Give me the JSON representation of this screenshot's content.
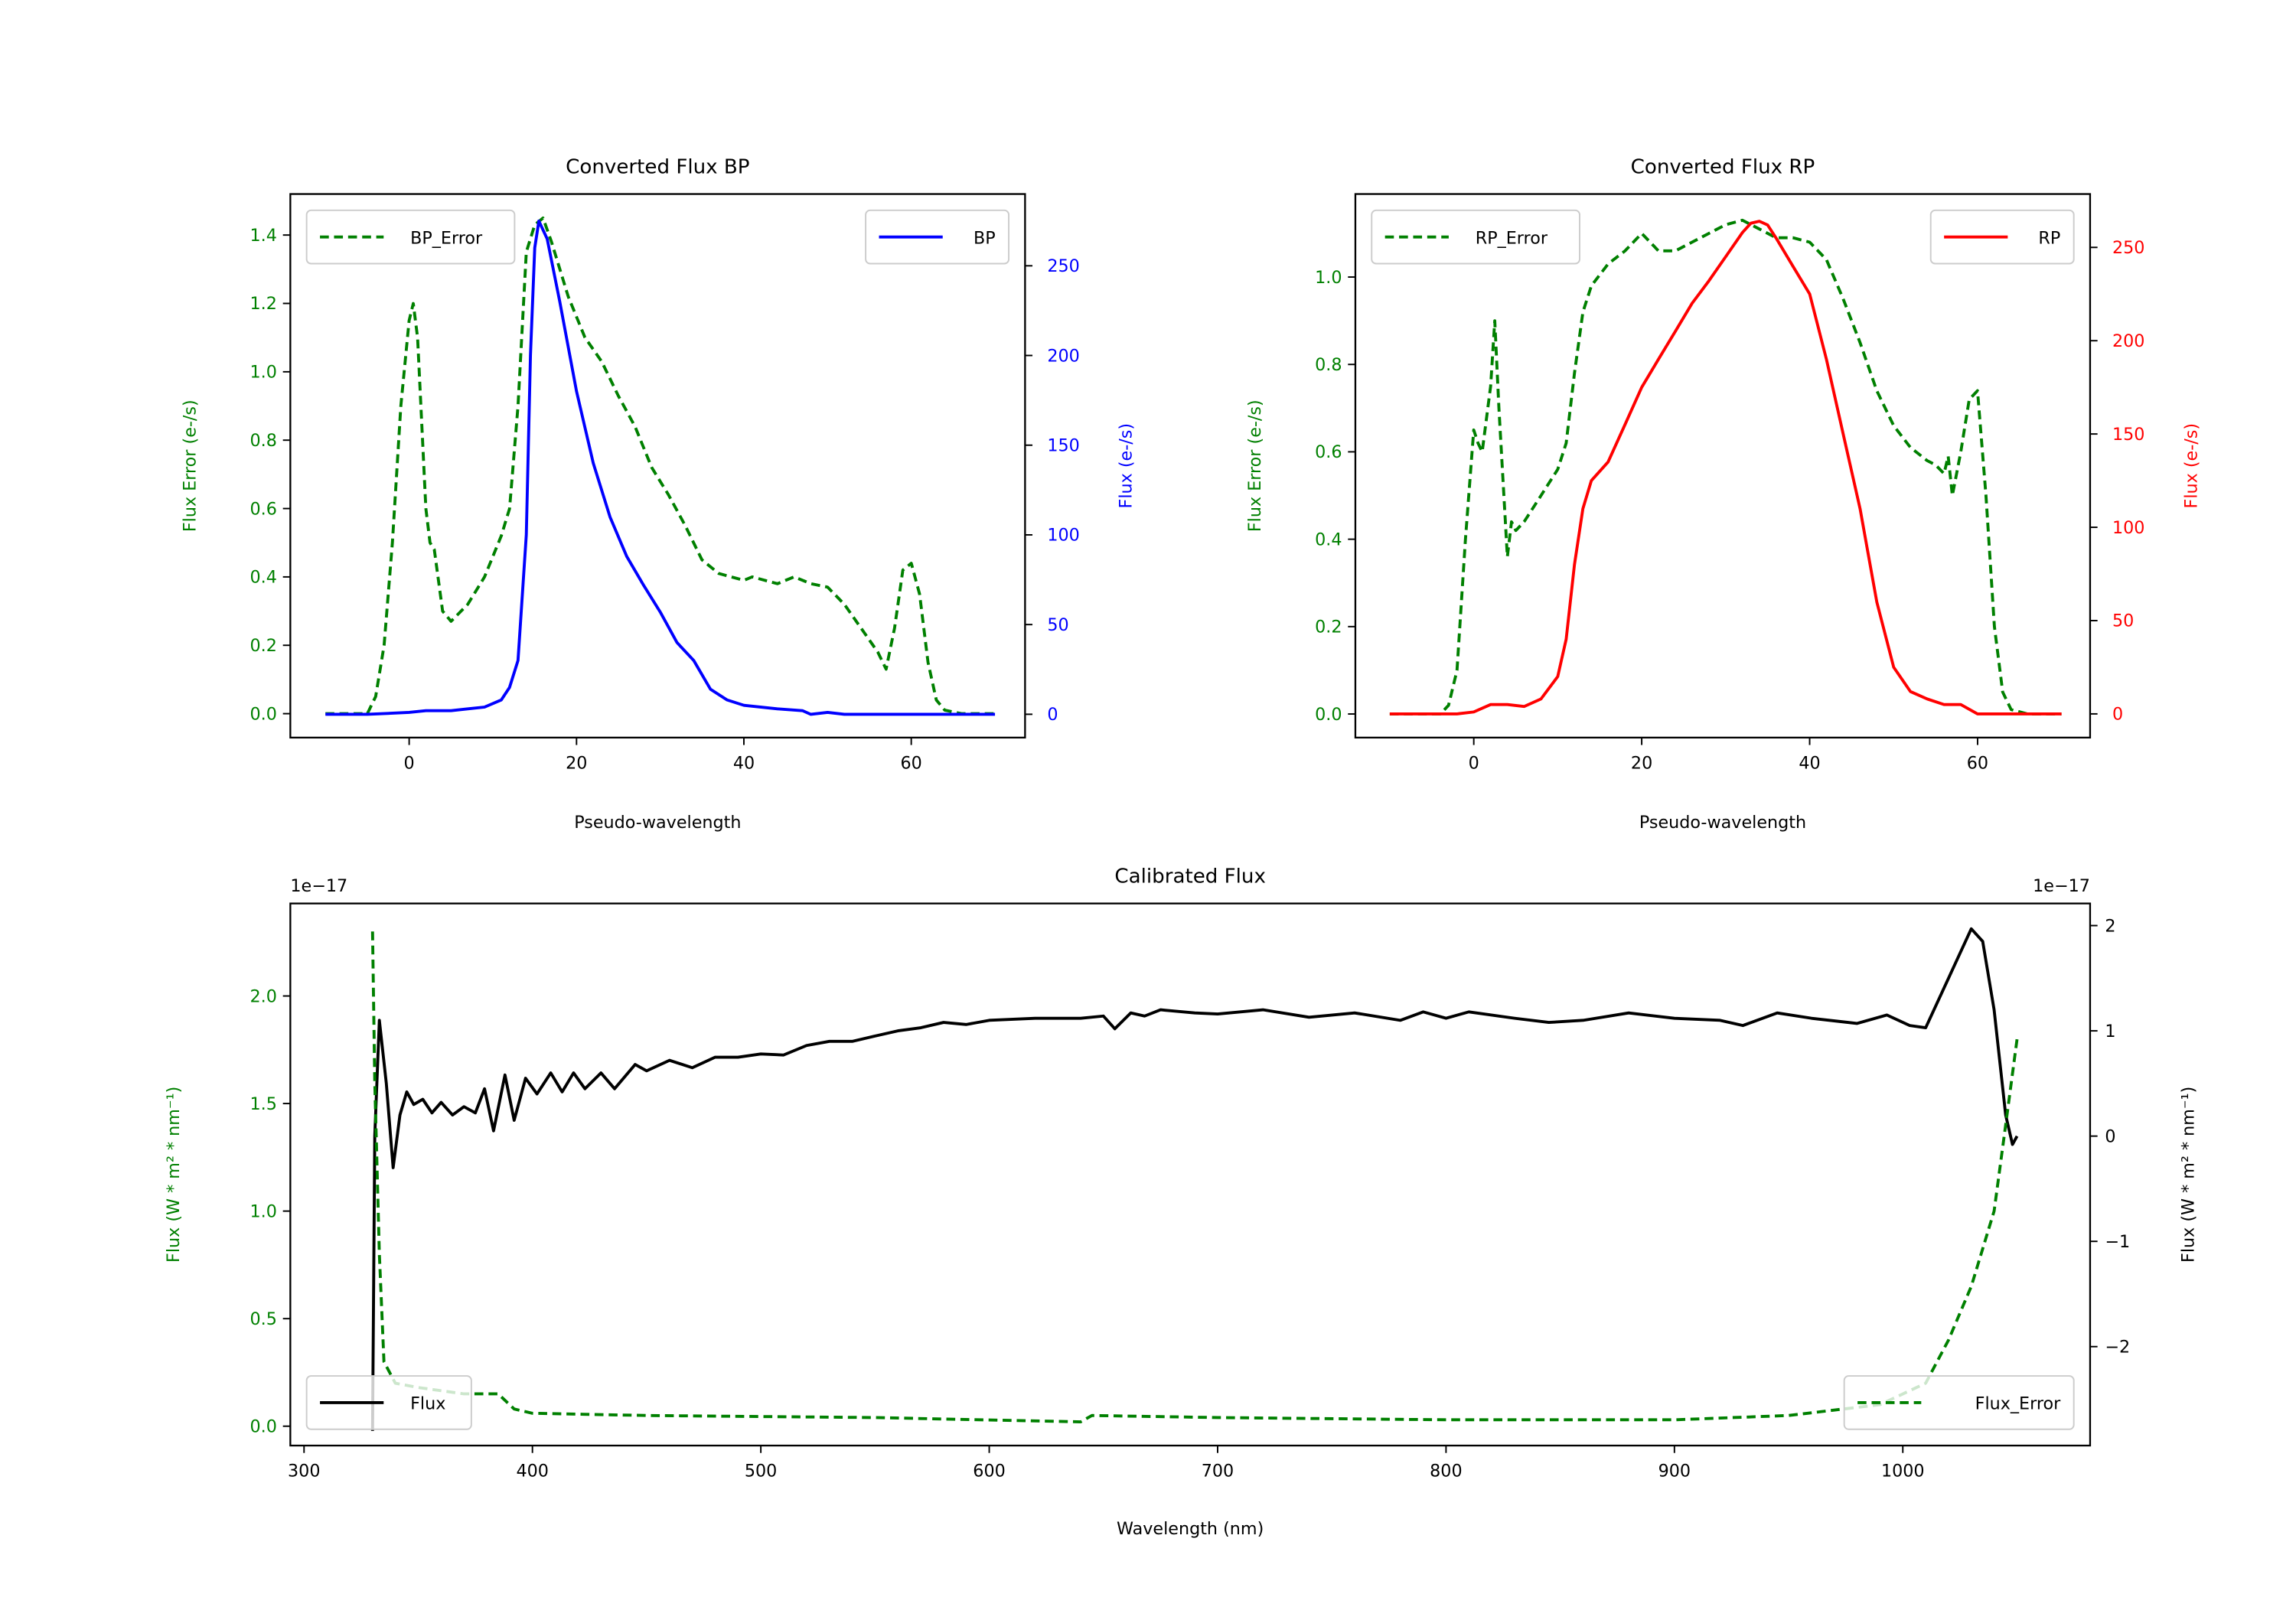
{
  "colors": {
    "error": "#008000",
    "bp": "#0000ff",
    "rp": "#ff0000",
    "flux": "#000000"
  },
  "chart_data": [
    {
      "type": "line",
      "title": "Converted Flux BP",
      "xlabel": "Pseudo-wavelength",
      "ylabel_left": "Flux Error (e-/s)",
      "ylabel_right": "Flux (e-/s)",
      "xlim": [
        -14.2,
        73.6
      ],
      "ylim_left": [
        -0.07,
        1.52
      ],
      "ylim_right": [
        -13,
        290
      ],
      "xticks": [
        "0",
        "20",
        "40",
        "60"
      ],
      "xtick_values": [
        0,
        20,
        40,
        60
      ],
      "yticks_left": [
        "0.0",
        "0.2",
        "0.4",
        "0.6",
        "0.8",
        "1.0",
        "1.2",
        "1.4"
      ],
      "ytick_left_values": [
        0,
        0.2,
        0.4,
        0.6,
        0.8,
        1.0,
        1.2,
        1.4
      ],
      "yticks_right": [
        "0",
        "50",
        "100",
        "150",
        "200",
        "250"
      ],
      "ytick_right_values": [
        0,
        50,
        100,
        150,
        200,
        250
      ],
      "series": [
        {
          "name": "BP_Error",
          "axis": "left",
          "style": "dashed",
          "color": "#008000",
          "legend": "upper-left",
          "x": [
            -10,
            -5,
            -4,
            -3,
            -2,
            -1,
            0,
            0.5,
            1,
            2,
            2.5,
            3,
            4,
            5,
            7,
            9,
            11,
            12,
            13,
            14,
            15,
            16,
            17,
            19,
            21,
            23,
            25,
            27,
            29,
            31,
            33,
            35,
            37,
            40,
            41,
            44,
            46,
            48,
            50,
            52,
            54,
            56,
            57,
            58,
            59,
            60,
            61,
            62,
            63,
            64,
            66,
            70
          ],
          "y": [
            0,
            0,
            0.05,
            0.2,
            0.5,
            0.9,
            1.15,
            1.2,
            1.1,
            0.6,
            0.5,
            0.48,
            0.3,
            0.27,
            0.32,
            0.4,
            0.52,
            0.6,
            0.9,
            1.35,
            1.43,
            1.45,
            1.38,
            1.22,
            1.1,
            1.03,
            0.93,
            0.84,
            0.72,
            0.64,
            0.55,
            0.45,
            0.41,
            0.39,
            0.4,
            0.38,
            0.4,
            0.38,
            0.37,
            0.32,
            0.25,
            0.18,
            0.13,
            0.25,
            0.42,
            0.44,
            0.35,
            0.15,
            0.04,
            0.01,
            0,
            0
          ]
        },
        {
          "name": "BP",
          "axis": "right",
          "style": "solid",
          "color": "#0000ff",
          "legend": "upper-right",
          "x": [
            -10,
            -5,
            0,
            2,
            5,
            7,
            9,
            11,
            12,
            13,
            14,
            14.5,
            15,
            15.5,
            16.5,
            18,
            20,
            22,
            24,
            26,
            28,
            30,
            32,
            34,
            36,
            38,
            40,
            44,
            47,
            48,
            50,
            52,
            56,
            60,
            64,
            70
          ],
          "y": [
            0,
            0,
            1,
            2,
            2,
            3,
            4,
            8,
            15,
            30,
            100,
            200,
            260,
            275,
            265,
            230,
            180,
            140,
            110,
            88,
            72,
            57,
            40,
            30,
            14,
            8,
            5,
            3,
            2,
            0,
            1,
            0,
            0,
            0,
            0,
            0
          ]
        }
      ]
    },
    {
      "type": "line",
      "title": "Converted Flux RP",
      "xlabel": "Pseudo-wavelength",
      "ylabel_left": "Flux Error (e-/s)",
      "ylabel_right": "Flux (e-/s)",
      "xlim": [
        -14.1,
        73.4
      ],
      "ylim_left": [
        -0.054,
        1.19
      ],
      "ylim_right": [
        -12.7,
        278.6
      ],
      "xticks": [
        "0",
        "20",
        "40",
        "60"
      ],
      "xtick_values": [
        0,
        20,
        40,
        60
      ],
      "yticks_left": [
        "0.0",
        "0.2",
        "0.4",
        "0.6",
        "0.8",
        "1.0"
      ],
      "ytick_left_values": [
        0,
        0.2,
        0.4,
        0.6,
        0.8,
        1.0
      ],
      "yticks_right": [
        "0",
        "50",
        "100",
        "150",
        "200",
        "250"
      ],
      "ytick_right_values": [
        0,
        50,
        100,
        150,
        200,
        250
      ],
      "series": [
        {
          "name": "RP_Error",
          "axis": "left",
          "style": "dashed",
          "color": "#008000",
          "legend": "upper-left",
          "x": [
            -10,
            -4,
            -3,
            -2,
            -1,
            0,
            0.5,
            1,
            2,
            2.5,
            3,
            4,
            4.5,
            5,
            6,
            8,
            10,
            11,
            12,
            13,
            14,
            16,
            18,
            20,
            21,
            22,
            24,
            26,
            28,
            30,
            32,
            34,
            36,
            38,
            40,
            42,
            44,
            46,
            48,
            50,
            52,
            54,
            55,
            56,
            56.5,
            57,
            58,
            59,
            60,
            61,
            62,
            63,
            64,
            66,
            70
          ],
          "y": [
            0,
            0,
            0.02,
            0.1,
            0.4,
            0.65,
            0.62,
            0.6,
            0.75,
            0.9,
            0.7,
            0.36,
            0.44,
            0.42,
            0.44,
            0.5,
            0.56,
            0.62,
            0.78,
            0.92,
            0.98,
            1.03,
            1.06,
            1.1,
            1.08,
            1.06,
            1.06,
            1.08,
            1.1,
            1.12,
            1.13,
            1.11,
            1.09,
            1.09,
            1.08,
            1.04,
            0.95,
            0.85,
            0.74,
            0.66,
            0.61,
            0.58,
            0.57,
            0.55,
            0.59,
            0.5,
            0.6,
            0.72,
            0.74,
            0.5,
            0.2,
            0.05,
            0.01,
            0,
            0
          ]
        },
        {
          "name": "RP",
          "axis": "right",
          "style": "solid",
          "color": "#ff0000",
          "legend": "upper-right",
          "x": [
            -10,
            -2,
            0,
            2,
            4,
            6,
            8,
            10,
            11,
            12,
            13,
            14,
            16,
            18,
            20,
            22,
            24,
            26,
            28,
            30,
            32,
            33,
            34,
            35,
            36,
            38,
            40,
            42,
            44,
            46,
            48,
            50,
            52,
            54,
            56,
            58,
            60,
            70
          ],
          "y": [
            0,
            0,
            1,
            5,
            5,
            4,
            8,
            20,
            40,
            80,
            110,
            125,
            135,
            155,
            175,
            190,
            205,
            220,
            232,
            245,
            258,
            263,
            264,
            262,
            255,
            240,
            225,
            190,
            150,
            110,
            60,
            25,
            12,
            8,
            5,
            5,
            0,
            0
          ]
        }
      ]
    },
    {
      "type": "line",
      "title": "Calibrated Flux",
      "xlabel": "Wavelength (nm)",
      "ylabel_left": "Flux (W * m² * nm⁻¹)",
      "ylabel_right": "Flux (W * m² * nm⁻¹)",
      "offset_left": "1e−17",
      "offset_right": "1e−17",
      "xlim": [
        294,
        1082
      ],
      "ylim_left": [
        -0.09,
        2.43
      ],
      "ylim_right": [
        -2.94,
        2.21
      ],
      "xticks": [
        "300",
        "400",
        "500",
        "600",
        "700",
        "800",
        "900",
        "1000"
      ],
      "xtick_values": [
        300,
        400,
        500,
        600,
        700,
        800,
        900,
        1000
      ],
      "yticks_left": [
        "0.0",
        "0.5",
        "1.0",
        "1.5",
        "2.0"
      ],
      "ytick_left_values": [
        0,
        0.5,
        1.0,
        1.5,
        2.0
      ],
      "yticks_right": [
        "−2",
        "−1",
        "0",
        "1",
        "2"
      ],
      "ytick_right_values": [
        -2,
        -1,
        0,
        1,
        2
      ],
      "series": [
        {
          "name": "Flux",
          "axis": "right",
          "style": "solid",
          "color": "#000000",
          "legend": "lower-left",
          "x": [
            330,
            331,
            333,
            336,
            339,
            342,
            345,
            348,
            352,
            356,
            360,
            365,
            370,
            375,
            379,
            383,
            388,
            392,
            397,
            402,
            408,
            413,
            418,
            423,
            430,
            436,
            445,
            450,
            460,
            470,
            480,
            490,
            500,
            510,
            520,
            530,
            540,
            550,
            560,
            570,
            580,
            590,
            600,
            620,
            640,
            650,
            655,
            662,
            668,
            675,
            690,
            700,
            720,
            740,
            760,
            780,
            790,
            800,
            810,
            830,
            845,
            860,
            880,
            900,
            920,
            930,
            945,
            960,
            980,
            993,
            1003,
            1010,
            1020,
            1030,
            1035,
            1040,
            1045,
            1048,
            1050
          ],
          "y": [
            -2.8,
            0,
            1.1,
            0.5,
            -0.3,
            0.2,
            0.42,
            0.3,
            0.35,
            0.22,
            0.32,
            0.2,
            0.28,
            0.22,
            0.45,
            0.05,
            0.58,
            0.15,
            0.55,
            0.4,
            0.6,
            0.42,
            0.6,
            0.45,
            0.6,
            0.45,
            0.68,
            0.62,
            0.72,
            0.65,
            0.75,
            0.75,
            0.78,
            0.77,
            0.86,
            0.9,
            0.9,
            0.95,
            1.0,
            1.03,
            1.08,
            1.06,
            1.1,
            1.12,
            1.12,
            1.14,
            1.02,
            1.17,
            1.14,
            1.2,
            1.17,
            1.16,
            1.2,
            1.13,
            1.17,
            1.1,
            1.18,
            1.12,
            1.18,
            1.12,
            1.08,
            1.1,
            1.17,
            1.12,
            1.1,
            1.05,
            1.17,
            1.12,
            1.07,
            1.15,
            1.05,
            1.03,
            1.5,
            1.97,
            1.85,
            1.2,
            0.2,
            -0.08,
            0
          ]
        },
        {
          "name": "Flux_Error",
          "axis": "left",
          "style": "dashed",
          "color": "#008000",
          "legend": "lower-right",
          "x": [
            330,
            331,
            333,
            335,
            340,
            350,
            370,
            385,
            392,
            400,
            450,
            550,
            640,
            645,
            700,
            800,
            900,
            950,
            990,
            1010,
            1020,
            1030,
            1040,
            1045,
            1050
          ],
          "y": [
            2.3,
            1.6,
            0.8,
            0.3,
            0.2,
            0.18,
            0.15,
            0.15,
            0.08,
            0.06,
            0.05,
            0.04,
            0.02,
            0.05,
            0.04,
            0.03,
            0.03,
            0.05,
            0.1,
            0.2,
            0.4,
            0.65,
            1.0,
            1.4,
            1.8
          ]
        }
      ]
    }
  ]
}
